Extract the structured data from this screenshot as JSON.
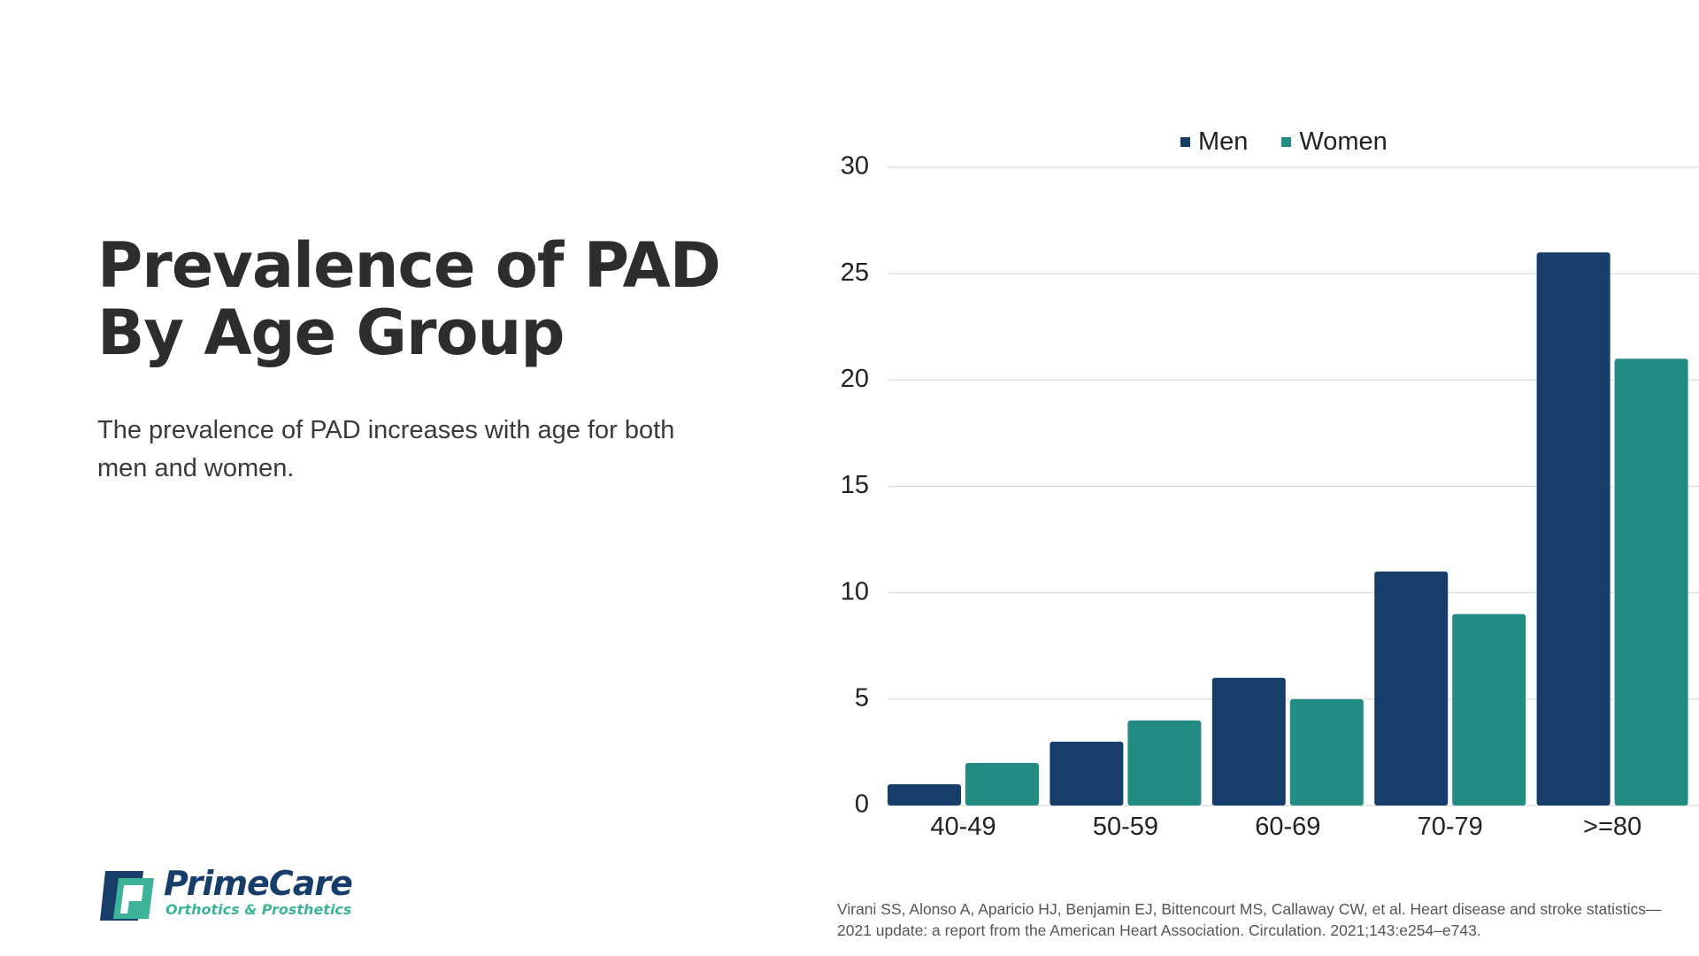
{
  "slide": {
    "title_line1": "Prevalence of PAD",
    "title_line2": "By Age Group",
    "subtitle": "The prevalence of PAD increases with age for both men and women.",
    "citation": "Virani SS, Alonso A, Aparicio HJ, Benjamin EJ, Bittencourt MS, Callaway CW, et al. Heart disease and stroke statistics—2021 update: a report from the American Heart Association. Circulation. 2021;143:e254–e743.",
    "logo": {
      "name": "PrimeCare",
      "tagline": "Orthotics & Prosthetics",
      "icon": "primecare-logo-icon"
    }
  },
  "chart_data": {
    "type": "bar",
    "title": "",
    "xlabel": "",
    "ylabel": "",
    "categories": [
      "40-49",
      "50-59",
      "60-69",
      "70-79",
      ">=80"
    ],
    "series": [
      {
        "name": "Men",
        "color": "#173e6a",
        "values": [
          1,
          3,
          6,
          11,
          26
        ]
      },
      {
        "name": "Women",
        "color": "#228c83",
        "values": [
          2,
          4,
          5,
          9,
          21
        ]
      }
    ],
    "ylim": [
      0,
      30
    ],
    "yticks": [
      "0",
      "5",
      "10",
      "15",
      "20",
      "25",
      "30"
    ],
    "grid": true,
    "legend_position": "top-center"
  }
}
